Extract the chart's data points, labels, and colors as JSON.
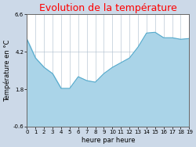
{
  "title": "Evolution de la température",
  "xlabel": "heure par heure",
  "ylabel": "Température en °C",
  "title_color": "#ff0000",
  "title_fontsize": 9,
  "background_color": "#ccd9e8",
  "plot_bg_color": "#ffffff",
  "line_color": "#55aacc",
  "fill_color": "#aad4e8",
  "fill_alpha": 1.0,
  "ylim": [
    -0.6,
    6.6
  ],
  "yticks": [
    -0.6,
    1.8,
    4.2,
    6.6
  ],
  "ytick_labels": [
    "-0.6",
    "1.8",
    "4.2",
    "6.6"
  ],
  "xlim": [
    0,
    19
  ],
  "xticks": [
    0,
    1,
    2,
    3,
    4,
    5,
    6,
    7,
    8,
    9,
    10,
    11,
    12,
    13,
    14,
    15,
    16,
    17,
    18,
    19
  ],
  "hours": [
    0,
    1,
    2,
    3,
    4,
    5,
    6,
    7,
    8,
    9,
    10,
    11,
    12,
    13,
    14,
    15,
    16,
    17,
    18,
    19
  ],
  "temps": [
    5.0,
    3.8,
    3.2,
    2.8,
    1.85,
    1.85,
    2.6,
    2.35,
    2.25,
    2.8,
    3.2,
    3.5,
    3.8,
    4.5,
    5.4,
    5.45,
    5.1,
    5.1,
    5.0,
    5.05
  ],
  "grid_color": "#aabbcc",
  "tick_fontsize": 5,
  "label_fontsize": 6,
  "line_width": 0.8
}
